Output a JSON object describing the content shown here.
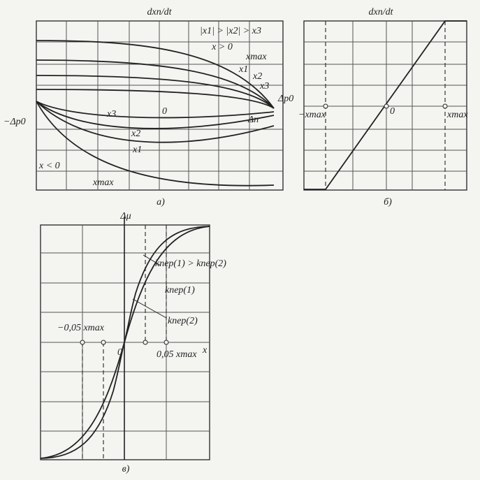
{
  "panel_a": {
    "y_axis_label": "dxп/dt",
    "legend": "|x1| > |x2| > x3",
    "positive_region": "x > 0",
    "negative_region": "x < 0",
    "upper_curves": [
      "xmax",
      "x1",
      "x2",
      "x3"
    ],
    "lower_curves": [
      "x3",
      "x2",
      "x1",
      "xmax"
    ],
    "right_label": "Δp0",
    "left_label": "−Δp0",
    "origin": "0",
    "dead_zone": "Δп",
    "caption": "а)"
  },
  "panel_b": {
    "y_axis_label": "dxп/dt",
    "left_label": "−xmax",
    "origin": "0",
    "right_label": "xmax",
    "caption": "б)"
  },
  "panel_c": {
    "y_axis_label": "Δμ",
    "relation": "kпер(1) > kпер(2)",
    "curve_1": "kпер(1)",
    "curve_2": "kпер(2)",
    "left_label": "−0,05 xmax",
    "origin": "0",
    "right_label": "0,05 xmax",
    "x_axis_label": "x",
    "caption": "в)"
  }
}
